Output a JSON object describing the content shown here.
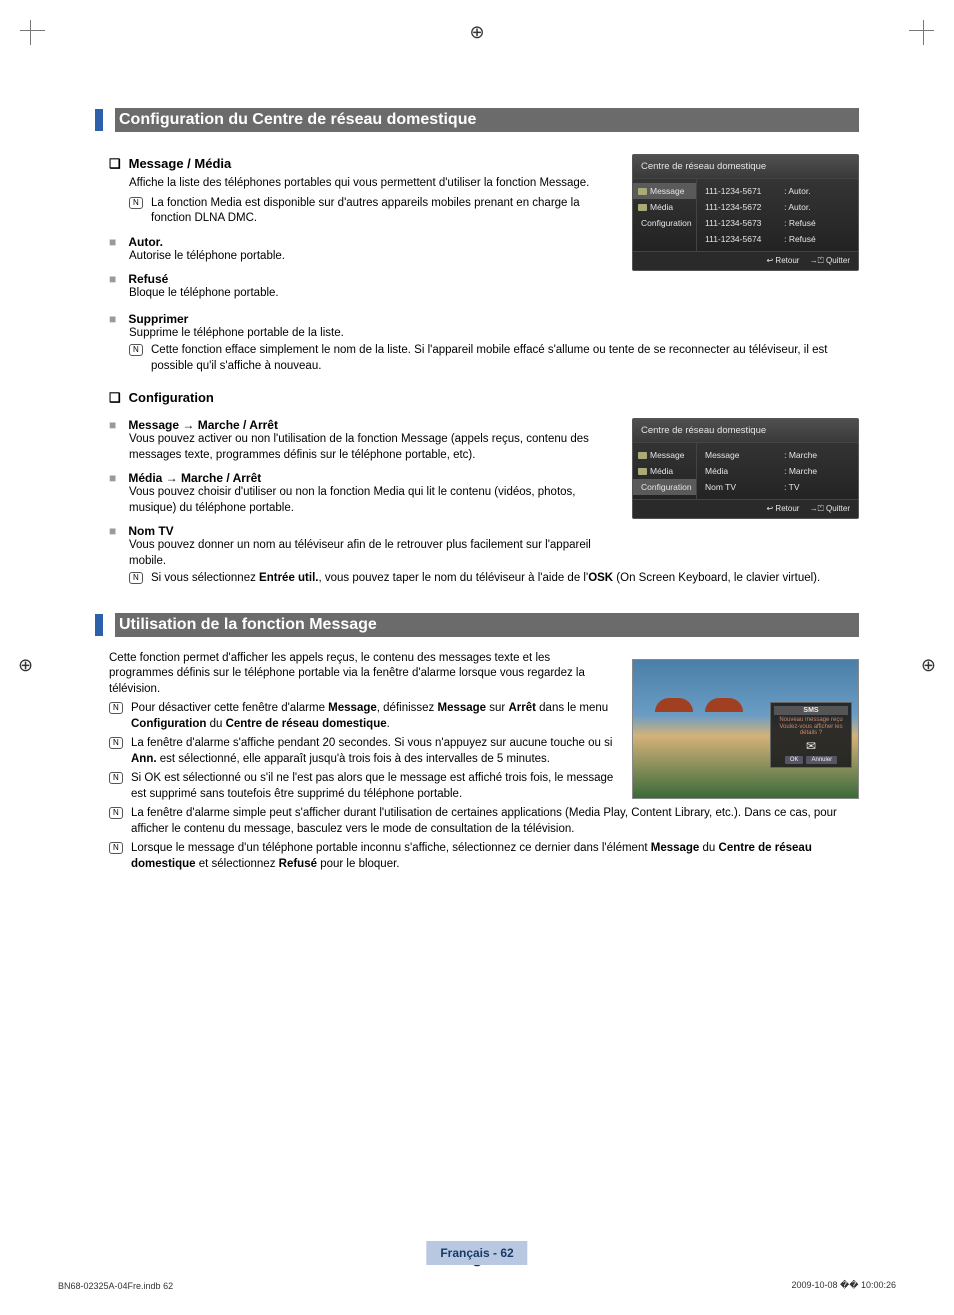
{
  "registration_glyph": "⊕",
  "section1": {
    "title": "Configuration du Centre de réseau domestique",
    "accent_color": "#2e5faa",
    "bar_bg": "#6b6b6b"
  },
  "message_media": {
    "heading": "Message / Média",
    "bullet": "❑",
    "desc": "Affiche la liste des téléphones portables qui vous permettent d'utiliser la fonction Message.",
    "note": "La fonction Media est disponible sur d'autres appareils mobiles prenant en charge la fonction DLNA DMC.",
    "items": [
      {
        "title": "Autor.",
        "body": "Autorise le téléphone portable."
      },
      {
        "title": "Refusé",
        "body": "Bloque le téléphone portable."
      },
      {
        "title": "Supprimer",
        "body": "Supprime le téléphone portable de la liste.",
        "note": "Cette fonction efface simplement le nom de la liste. Si l'appareil mobile effacé s'allume ou tente de se reconnecter au téléviseur, il est possible qu'il s'affiche à nouveau."
      }
    ]
  },
  "configuration": {
    "heading": "Configuration",
    "bullet": "❑",
    "items": [
      {
        "title": "Message → Marche / Arrêt",
        "body": "Vous pouvez activer ou non l'utilisation de la fonction Message (appels reçus, contenu des messages texte, programmes définis sur le téléphone portable, etc)."
      },
      {
        "title": "Média → Marche / Arrêt",
        "body": "Vous pouvez choisir d'utiliser ou non la fonction Media qui lit le contenu (vidéos, photos, musique) du téléphone portable."
      },
      {
        "title": "Nom TV",
        "body": "Vous pouvez donner un nom au téléviseur afin de le retrouver plus facilement sur l'appareil mobile.",
        "note_pre": "Si vous sélectionnez ",
        "note_bold1": "Entrée util.",
        "note_mid": ", vous pouvez taper le nom du téléviseur à l'aide de l'",
        "note_bold2": "OSK",
        "note_post": " (On Screen Keyboard, le clavier virtuel)."
      }
    ]
  },
  "osd1": {
    "title": "Centre de réseau domestique",
    "nav": [
      "Message",
      "Média",
      "Configuration"
    ],
    "rows": [
      {
        "k": "111-1234-5671",
        "v": ": Autor."
      },
      {
        "k": "111-1234-5672",
        "v": ": Autor."
      },
      {
        "k": "111-1234-5673",
        "v": ": Refusé"
      },
      {
        "k": "111-1234-5674",
        "v": ": Refusé"
      }
    ],
    "footer": {
      "return": "↩ Retour",
      "exit": "→⏍ Quitter"
    }
  },
  "osd2": {
    "title": "Centre de réseau domestique",
    "nav": [
      "Message",
      "Média",
      "Configuration"
    ],
    "rows": [
      {
        "k": "Message",
        "v": ": Marche"
      },
      {
        "k": "Média",
        "v": ": Marche"
      },
      {
        "k": "Nom TV",
        "v": ": TV"
      }
    ],
    "footer": {
      "return": "↩ Retour",
      "exit": "→⏍ Quitter"
    }
  },
  "section2": {
    "title": "Utilisation de la fonction Message"
  },
  "usage": {
    "intro": "Cette fonction permet d'afficher les appels reçus, le contenu des messages texte et les programmes définis sur le téléphone portable via la fenêtre d'alarme lorsque vous regardez la télévision.",
    "notes": [
      {
        "parts": [
          "Pour désactiver cette fenêtre d'alarme ",
          {
            "b": "Message"
          },
          ", définissez ",
          {
            "b": "Message"
          },
          " sur ",
          {
            "b": "Arrêt"
          },
          " dans le menu ",
          {
            "b": "Configuration"
          },
          " du ",
          {
            "b": "Centre de réseau domestique"
          },
          "."
        ]
      },
      {
        "parts": [
          "La fenêtre d'alarme s'affiche pendant 20 secondes. Si vous n'appuyez sur aucune touche ou si ",
          {
            "b": "Ann."
          },
          " est sélectionné, elle apparaît jusqu'à trois fois à des intervalles de 5 minutes."
        ]
      },
      {
        "parts": [
          "Si OK est sélectionné ou s'il ne l'est pas alors que le message est affiché trois fois, le message est supprimé sans toutefois être supprimé du téléphone portable."
        ]
      },
      {
        "parts": [
          "La fenêtre d'alarme simple peut s'afficher durant l'utilisation de certaines applications (Media Play, Content Library, etc.). Dans ce cas, pour afficher le contenu du message, basculez vers le mode de consultation de la télévision."
        ]
      },
      {
        "parts": [
          "Lorsque le message d'un téléphone portable inconnu s'affiche, sélectionnez ce dernier dans l'élément ",
          {
            "b": "Message"
          },
          " du ",
          {
            "b": "Centre de réseau domestique"
          },
          " et sélectionnez ",
          {
            "b": "Refusé"
          },
          " pour le bloquer."
        ]
      }
    ]
  },
  "tv_dialog": {
    "header": "SMS",
    "line1": "Nouveau message reçu",
    "line2": "Voulez-vous afficher les détails ?",
    "btn_ok": "OK",
    "btn_cancel": "Annuler"
  },
  "footer": {
    "page_label": "Français - 62",
    "doc_left": "BN68-02325A-04Fre.indb   62",
    "doc_right": "2009-10-08   �� 10:00:26"
  },
  "note_glyph": "N",
  "sq_glyph": "■"
}
